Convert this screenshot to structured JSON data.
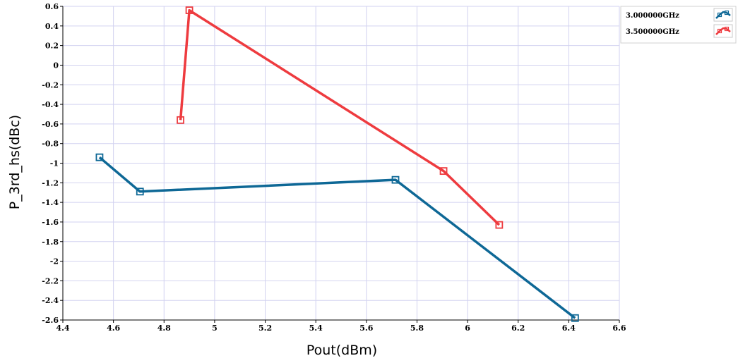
{
  "chart_data": {
    "type": "line",
    "title": "",
    "xlabel": "Pout(dBm)",
    "ylabel": "P_3rd_hs(dBc)",
    "xlim": [
      4.4,
      6.6
    ],
    "ylim": [
      -2.6,
      0.6
    ],
    "x_ticks": [
      "4.4",
      "4.6",
      "4.8",
      "5",
      "5.2",
      "5.4",
      "5.6",
      "5.8",
      "6",
      "6.2",
      "6.4",
      "6.6"
    ],
    "y_ticks": [
      "0.6",
      "0.4",
      "0.2",
      "0",
      "-0.2",
      "-0.4",
      "-0.6",
      "-0.8",
      "-1",
      "-1.2",
      "-1.4",
      "-1.6",
      "-1.8",
      "-2",
      "-2.2",
      "-2.4",
      "-2.6"
    ],
    "grid": true,
    "legend_position": "top-right",
    "series": [
      {
        "name": "3.000000GHz",
        "color": "#0e6896",
        "marker": "square",
        "points": [
          {
            "x": 4.545,
            "y": -0.94
          },
          {
            "x": 4.705,
            "y": -1.29
          },
          {
            "x": 5.715,
            "y": -1.17
          },
          {
            "x": 6.425,
            "y": -2.58
          }
        ]
      },
      {
        "name": "3.500000GHz",
        "color": "#ee3b3f",
        "marker": "square",
        "points": [
          {
            "x": 4.865,
            "y": -0.56
          },
          {
            "x": 4.9,
            "y": 0.56
          },
          {
            "x": 5.905,
            "y": -1.08
          },
          {
            "x": 6.125,
            "y": -1.63
          }
        ]
      }
    ]
  }
}
